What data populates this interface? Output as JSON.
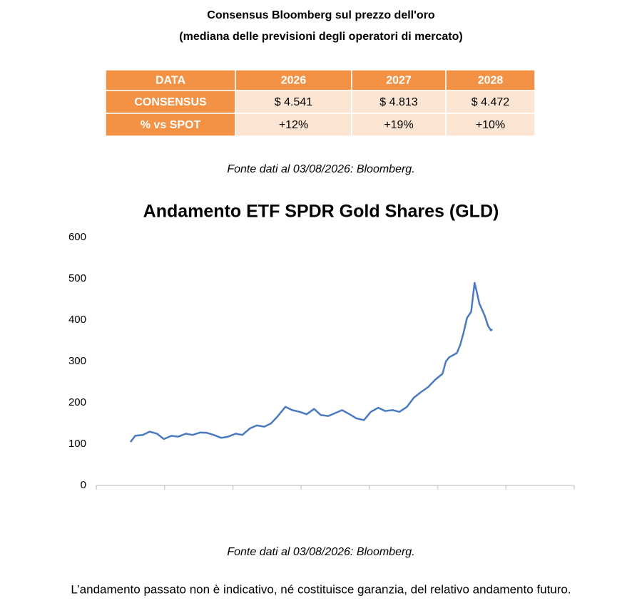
{
  "header": {
    "title": "Consensus Bloomberg sul prezzo dell'oro",
    "subtitle": "(mediana delle previsioni degli operatori di mercato)"
  },
  "table": {
    "header": [
      "DATA",
      "2026",
      "2027",
      "2028"
    ],
    "rows": [
      [
        "CONSENSUS",
        "$ 4.541",
        "$ 4.813",
        "$ 4.472"
      ],
      [
        "% vs SPOT",
        "+12%",
        "+19%",
        "+10%"
      ]
    ]
  },
  "table_source": "Fonte dati al 03/08/2026: Bloomberg.",
  "chart_data": {
    "type": "line",
    "title": "Andamento ETF SPDR Gold Shares (GLD)",
    "series": [
      {
        "color": "#4a7ac0",
        "x": [
          0.5,
          0.57,
          0.68,
          0.78,
          0.89,
          0.99,
          1.1,
          1.2,
          1.31,
          1.41,
          1.52,
          1.62,
          1.72,
          1.83,
          1.93,
          2.04,
          2.14,
          2.25,
          2.35,
          2.46,
          2.56,
          2.66,
          2.77,
          2.87,
          2.98,
          3.08,
          3.19,
          3.29,
          3.4,
          3.5,
          3.6,
          3.71,
          3.81,
          3.92,
          4.02,
          4.13,
          4.23,
          4.34,
          4.44,
          4.55,
          4.65,
          4.75,
          4.86,
          4.96,
          5.07,
          5.12,
          5.17,
          5.28,
          5.33,
          5.38,
          5.43,
          5.49,
          5.54,
          5.57,
          5.61,
          5.65,
          5.69,
          5.74,
          5.78,
          5.8
        ],
        "values": [
          105,
          120,
          122,
          130,
          125,
          112,
          120,
          118,
          125,
          122,
          128,
          127,
          122,
          115,
          118,
          125,
          122,
          138,
          145,
          142,
          150,
          168,
          190,
          182,
          178,
          172,
          185,
          170,
          168,
          175,
          182,
          172,
          162,
          158,
          178,
          188,
          180,
          182,
          178,
          190,
          212,
          225,
          238,
          255,
          270,
          300,
          310,
          320,
          340,
          370,
          405,
          420,
          490,
          470,
          440,
          425,
          410,
          385,
          375,
          378
        ]
      }
    ],
    "xlim": [
      0,
      7
    ],
    "xticks": [
      0,
      1,
      2,
      3,
      4,
      5,
      6,
      7
    ],
    "ylim": [
      0,
      600
    ],
    "yticks": [
      0,
      100,
      200,
      300,
      400,
      500,
      600
    ]
  },
  "chart_source": "Fonte dati al 03/08/2026: Bloomberg.",
  "disclaimer": "L’andamento passato non è indicativo, né costituisce garanzia, del relativo andamento futuro."
}
